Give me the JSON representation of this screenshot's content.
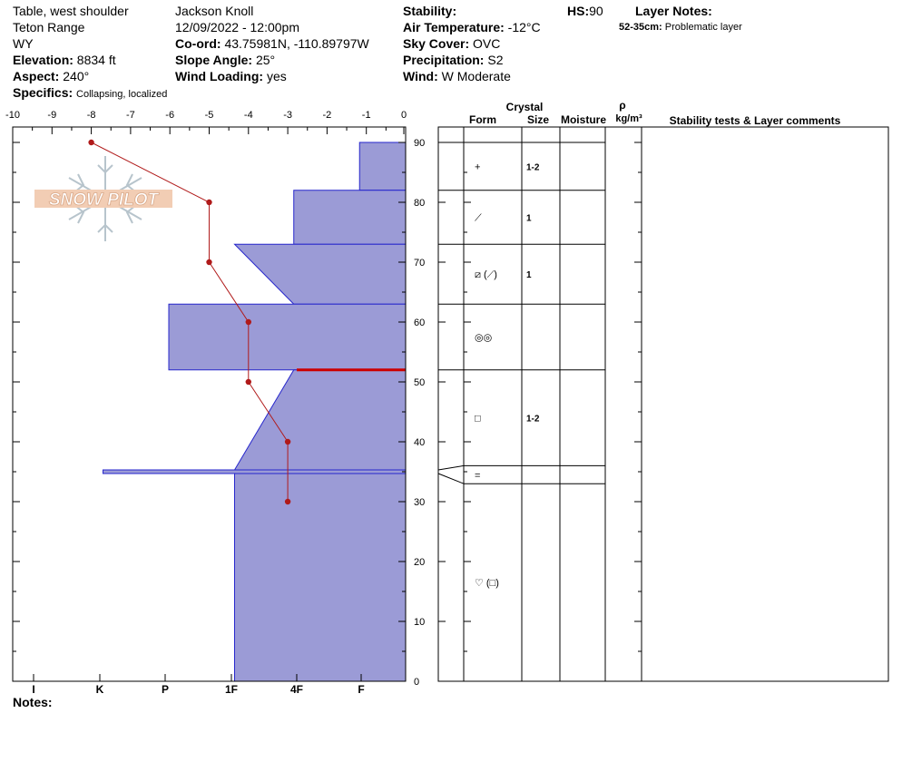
{
  "header": {
    "location": "Table, west shoulder",
    "range": "Teton Range",
    "state": "WY",
    "elevation_label": "Elevation:",
    "elevation": "8834 ft",
    "aspect_label": "Aspect:",
    "aspect": "240°",
    "specifics_label": "Specifics:",
    "specifics": "Collapsing, localized",
    "observer": "Jackson Knoll",
    "datetime": "12/09/2022 - 12:00pm",
    "coord_label": "Co-ord:",
    "coord": "43.75981N, -110.89797W",
    "slope_label": "Slope Angle:",
    "slope": "25°",
    "wind_loading_label": "Wind Loading:",
    "wind_loading": "yes",
    "stability_label": "Stability:",
    "stability": "",
    "air_temp_label": "Air Temperature:",
    "air_temp": "-12°C",
    "sky_label": "Sky Cover:",
    "sky": "OVC",
    "precip_label": "Precipitation:",
    "precip": "S2",
    "wind_label": "Wind:",
    "wind": "W Moderate",
    "hs_label": "HS:",
    "hs": "90",
    "layer_notes_label": "Layer Notes:",
    "layer_note_range": "52-35cm:",
    "layer_note_text": "Problematic layer",
    "notes_label": "Notes:"
  },
  "logo_text": "SNOW PILOT",
  "columns": {
    "crystal": "Crystal",
    "form": "Form",
    "size": "Size",
    "moisture": "Moisture",
    "rho": "ρ",
    "density": "kg/m³",
    "stability": "Stability tests & Layer comments"
  },
  "colors": {
    "hardness_fill": "#9b9bd6",
    "hardness_stroke": "#2626cc",
    "temperature": "#b01a1a",
    "problem_layer": "#cc0000"
  },
  "chart_data": {
    "type": "snow-profile",
    "temp_ticks": [
      "-10",
      "-9",
      "-8",
      "-7",
      "-6",
      "-5",
      "-4",
      "-3",
      "-2",
      "-1",
      "0"
    ],
    "hardness_ticks": [
      "I",
      "K",
      "P",
      "1F",
      "4F",
      "F"
    ],
    "depth_ticks": [
      "90",
      "80",
      "70",
      "60",
      "50",
      "40",
      "30",
      "20",
      "10",
      "0"
    ],
    "temp_range": [
      -10,
      0
    ],
    "depth_range": [
      0,
      90
    ],
    "temperature_profile": [
      {
        "depth": 90,
        "temp": -8
      },
      {
        "depth": 80,
        "temp": -5
      },
      {
        "depth": 70,
        "temp": -5
      },
      {
        "depth": 60,
        "temp": -4
      },
      {
        "depth": 50,
        "temp": -4
      },
      {
        "depth": 40,
        "temp": -3
      },
      {
        "depth": 30,
        "temp": -3
      }
    ],
    "hardness_scale": "F, 4F, 1F, P, K, I = 1..6; + and - shown as fractional steps",
    "layers": [
      {
        "top": 90,
        "bottom": 82,
        "hardness_top": 0.7,
        "hardness_bottom": 0.7,
        "form": "+",
        "size": "1-2"
      },
      {
        "top": 82,
        "bottom": 73,
        "hardness_top": 1.7,
        "hardness_bottom": 1.7,
        "form": "⟋",
        "size": "1"
      },
      {
        "top": 73,
        "bottom": 63,
        "hardness_top": 2.6,
        "hardness_bottom": 1.7,
        "form": "⧄ (⟋)",
        "size": "1"
      },
      {
        "top": 63,
        "bottom": 52,
        "hardness_top": 3.6,
        "hardness_bottom": 3.6,
        "form": "◎◎",
        "size": ""
      },
      {
        "top": 52,
        "bottom": 35.3,
        "hardness_top": 1.7,
        "hardness_bottom": 2.6,
        "form": "□",
        "size": "1-2"
      },
      {
        "top": 35.3,
        "bottom": 34.7,
        "hardness_top": 4.6,
        "hardness_bottom": 4.6,
        "form": "=",
        "size": ""
      },
      {
        "top": 34.7,
        "bottom": 0,
        "hardness_top": 2.6,
        "hardness_bottom": 2.6,
        "form": "♡ (□)",
        "size": ""
      }
    ],
    "problem_layer_depth": 52,
    "crystal_rows": [
      {
        "top": 90,
        "bottom": 82,
        "form": "+",
        "size": "1-2"
      },
      {
        "top": 82,
        "bottom": 73,
        "form": "⟋",
        "size": "1"
      },
      {
        "top": 73,
        "bottom": 63,
        "form": "⧄ (⟋)",
        "size": "1"
      },
      {
        "top": 63,
        "bottom": 52,
        "form": "◎◎",
        "size": ""
      },
      {
        "top": 52,
        "bottom": 36,
        "form": "□",
        "size": "1-2"
      },
      {
        "top": 36,
        "bottom": 33,
        "form": "=",
        "size": ""
      },
      {
        "top": 33,
        "bottom": 0,
        "form": "♡ (□)",
        "size": ""
      }
    ]
  }
}
